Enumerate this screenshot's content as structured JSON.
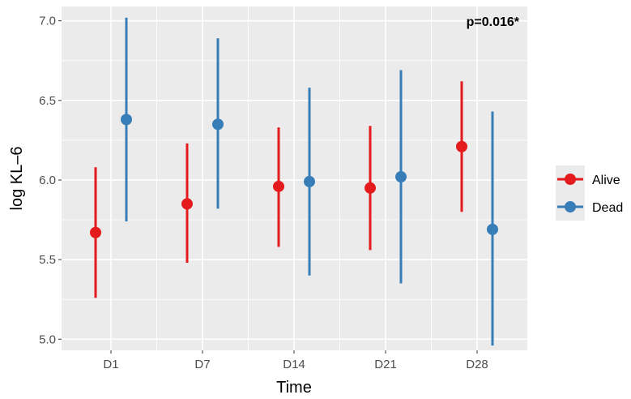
{
  "chart_data": {
    "type": "errorbar",
    "title": "",
    "xlabel": "Time",
    "ylabel": "log KL–6",
    "annotation": "p=0.016*",
    "categories": [
      "D1",
      "D7",
      "D14",
      "D21",
      "D28"
    ],
    "ylim": [
      4.93,
      7.09
    ],
    "yticks": [
      5.0,
      5.5,
      6.0,
      6.5,
      7.0
    ],
    "ytick_labels": [
      "5.0",
      "5.5",
      "6.0",
      "6.5",
      "7.0"
    ],
    "grid": true,
    "legend": {
      "position": "right",
      "title": ""
    },
    "series": [
      {
        "name": "Alive",
        "color": "#e41a1c",
        "points": [
          {
            "x": "D1",
            "y": 5.67,
            "low": 5.26,
            "high": 6.08
          },
          {
            "x": "D7",
            "y": 5.85,
            "low": 5.48,
            "high": 6.23
          },
          {
            "x": "D14",
            "y": 5.96,
            "low": 5.58,
            "high": 6.33
          },
          {
            "x": "D21",
            "y": 5.95,
            "low": 5.56,
            "high": 6.34
          },
          {
            "x": "D28",
            "y": 6.21,
            "low": 5.8,
            "high": 6.62
          }
        ]
      },
      {
        "name": "Dead",
        "color": "#377eb8",
        "points": [
          {
            "x": "D1",
            "y": 6.38,
            "low": 5.74,
            "high": 7.02
          },
          {
            "x": "D7",
            "y": 6.35,
            "low": 5.82,
            "high": 6.89
          },
          {
            "x": "D14",
            "y": 5.99,
            "low": 5.4,
            "high": 6.58
          },
          {
            "x": "D21",
            "y": 6.02,
            "low": 5.35,
            "high": 6.69
          },
          {
            "x": "D28",
            "y": 5.69,
            "low": 4.96,
            "high": 6.43
          }
        ]
      }
    ]
  }
}
